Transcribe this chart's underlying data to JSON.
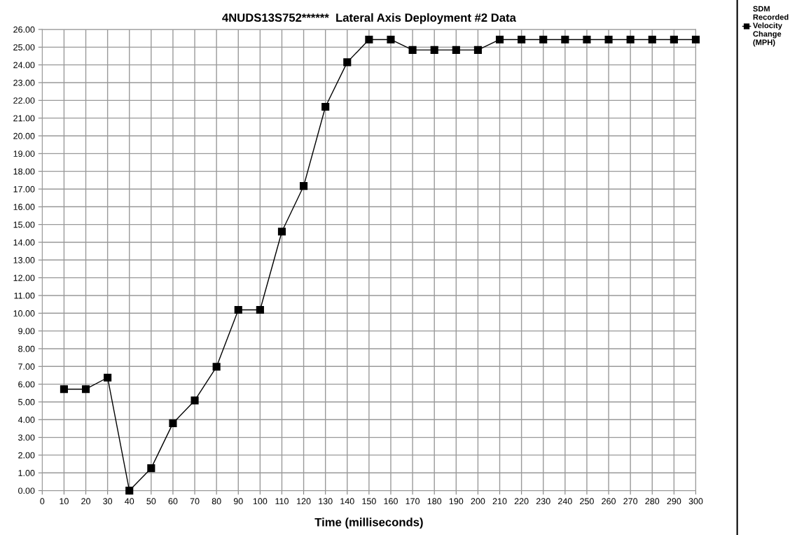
{
  "chart_data": {
    "type": "line",
    "title": "4NUDS13S752******  Lateral Axis Deployment #2 Data",
    "xlabel": "Time (milliseconds)",
    "x": [
      10,
      20,
      30,
      40,
      50,
      60,
      70,
      80,
      90,
      100,
      110,
      120,
      130,
      140,
      150,
      160,
      170,
      180,
      190,
      200,
      210,
      220,
      230,
      240,
      250,
      260,
      270,
      280,
      290,
      300
    ],
    "series": [
      {
        "name": "SDM Recorded Velocity Change (MPH)",
        "color": "#000000",
        "values": [
          5.72,
          5.72,
          6.37,
          0,
          1.26,
          3.8,
          5.08,
          6.98,
          10.19,
          10.19,
          14.6,
          17.17,
          21.64,
          24.15,
          25.43,
          25.43,
          24.84,
          24.84,
          24.84,
          24.84,
          25.43,
          25.43,
          25.43,
          25.43,
          25.43,
          25.43,
          25.43,
          25.43,
          25.43,
          25.43
        ]
      }
    ],
    "xlim": [
      0,
      300
    ],
    "xticks": [
      0,
      10,
      20,
      30,
      40,
      50,
      60,
      70,
      80,
      90,
      100,
      110,
      120,
      130,
      140,
      150,
      160,
      170,
      180,
      190,
      200,
      210,
      220,
      230,
      240,
      250,
      260,
      270,
      280,
      290,
      300
    ],
    "ylim": [
      0,
      26
    ],
    "yticks": [
      {
        "value": 0,
        "label": "0.00"
      },
      {
        "value": 1,
        "label": "1.00"
      },
      {
        "value": 2,
        "label": "2.00"
      },
      {
        "value": 3,
        "label": "3.00"
      },
      {
        "value": 4,
        "label": "4.00"
      },
      {
        "value": 5,
        "label": "5.00"
      },
      {
        "value": 6,
        "label": "6.00"
      },
      {
        "value": 7,
        "label": "7.00"
      },
      {
        "value": 8,
        "label": "8.00"
      },
      {
        "value": 9,
        "label": "9.00"
      },
      {
        "value": 10,
        "label": "10.00"
      },
      {
        "value": 11,
        "label": "11.00"
      },
      {
        "value": 12,
        "label": "12.00"
      },
      {
        "value": 13,
        "label": "13.00"
      },
      {
        "value": 14,
        "label": "14.00"
      },
      {
        "value": 15,
        "label": "15.00"
      },
      {
        "value": 16,
        "label": "16.00"
      },
      {
        "value": 17,
        "label": "17.00"
      },
      {
        "value": 18,
        "label": "18.00"
      },
      {
        "value": 19,
        "label": "19.00"
      },
      {
        "value": 20,
        "label": "20.00"
      },
      {
        "value": 21,
        "label": "21.00"
      },
      {
        "value": 22,
        "label": "22.00"
      },
      {
        "value": 23,
        "label": "23.00"
      },
      {
        "value": 24,
        "label": "24.00"
      },
      {
        "value": 25,
        "label": "25.00"
      },
      {
        "value": 26,
        "label": "26.00"
      }
    ],
    "grid": true,
    "legend": "right",
    "marker": "square",
    "line_style": "solid"
  }
}
